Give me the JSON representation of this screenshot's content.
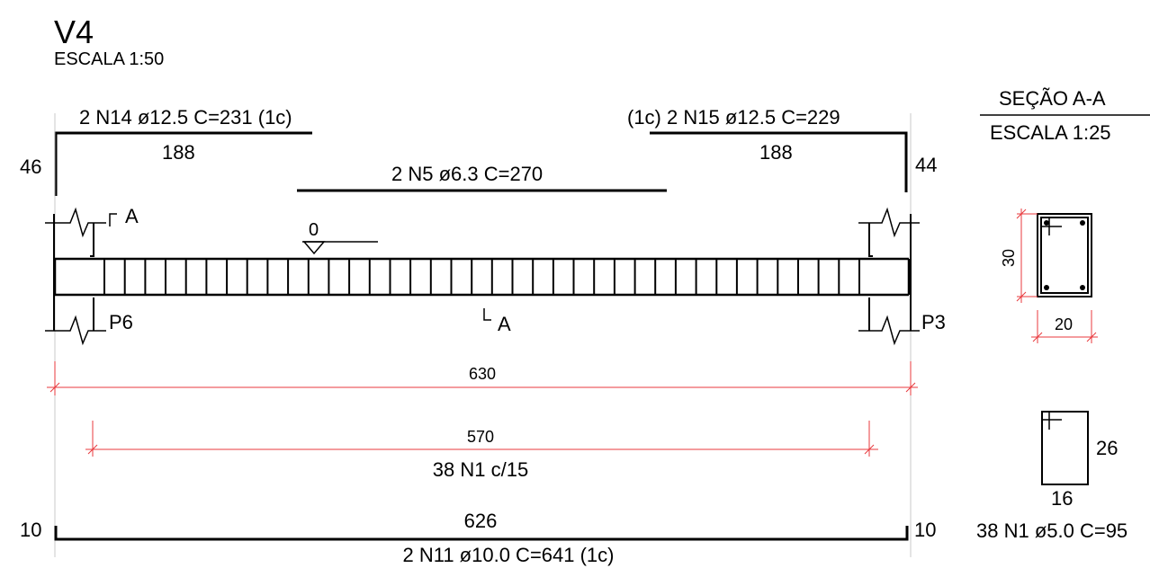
{
  "header": {
    "title": "V4",
    "scale": "ESCALA 1:50"
  },
  "top_bars": {
    "left": {
      "label": "2 N14 ø12.5 C=231 (1c)",
      "length": "188",
      "hook": "46"
    },
    "right": {
      "label": "(1c) 2 N15 ø12.5 C=229",
      "length": "188",
      "hook": "44"
    },
    "middle": {
      "label": "2 N5 ø6.3 C=270"
    }
  },
  "beam": {
    "level": "0",
    "section_mark_top": "A",
    "section_mark_bottom": "A",
    "left_support": "P6",
    "right_support": "P3",
    "stirrup_count": 38
  },
  "dimensions": {
    "total_span": "630",
    "stirrup_zone": "570",
    "stirrup_spec": "38 N1 c/15"
  },
  "bottom_bar": {
    "length": "626",
    "hook_left": "10",
    "hook_right": "10",
    "label": "2 N11 ø10.0 C=641 (1c)"
  },
  "section": {
    "title": "SEÇÃO A-A",
    "scale": "ESCALA 1:25",
    "height": "30",
    "width": "20"
  },
  "stirrup_detail": {
    "height": "26",
    "width": "16",
    "label": "38 N1 ø5.0 C=95"
  },
  "colors": {
    "line": "#000000",
    "dimension": "#e8383d"
  }
}
